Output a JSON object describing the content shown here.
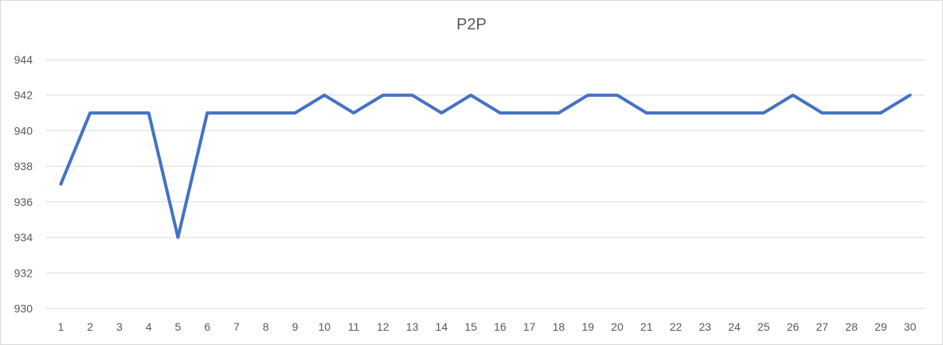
{
  "chart_data": {
    "type": "line",
    "title": "P2P",
    "xlabel": "",
    "ylabel": "",
    "x": [
      1,
      2,
      3,
      4,
      5,
      6,
      7,
      8,
      9,
      10,
      11,
      12,
      13,
      14,
      15,
      16,
      17,
      18,
      19,
      20,
      21,
      22,
      23,
      24,
      25,
      26,
      27,
      28,
      29,
      30
    ],
    "series": [
      {
        "color": "#4472C4",
        "values": [
          937,
          941,
          941,
          941,
          934,
          941,
          941,
          941,
          941,
          942,
          941,
          942,
          942,
          941,
          942,
          941,
          941,
          941,
          942,
          942,
          941,
          941,
          941,
          941,
          941,
          942,
          941,
          941,
          941,
          942
        ]
      }
    ],
    "ylim": [
      930,
      944
    ],
    "yticks": [
      930,
      932,
      934,
      936,
      938,
      940,
      942,
      944
    ],
    "grid": true,
    "gridColor": "#d9d9d9",
    "legend": "none"
  }
}
